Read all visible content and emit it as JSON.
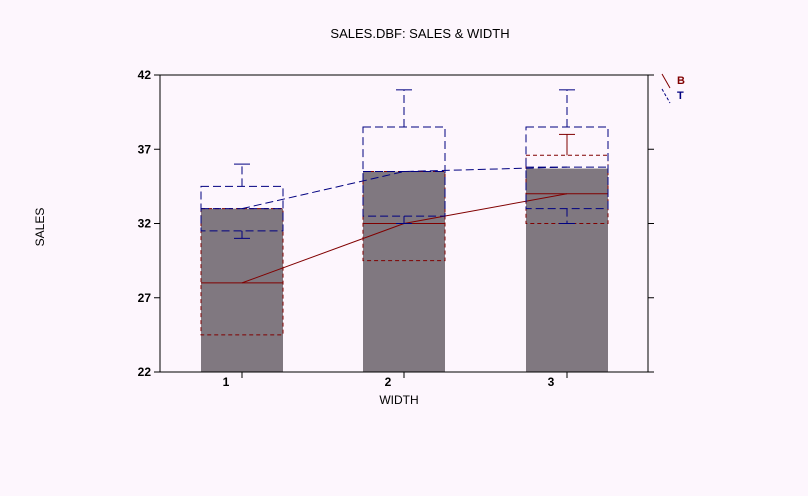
{
  "chart_data": {
    "type": "bar",
    "title": "SALES.DBF: SALES & WIDTH",
    "xlabel": "WIDTH",
    "ylabel": "SALES",
    "categories": [
      "1",
      "2",
      "3"
    ],
    "ylim": [
      22,
      42
    ],
    "yticks": [
      "22",
      "27",
      "32",
      "37",
      "42"
    ],
    "grid": false,
    "legend_position": "top-right",
    "bar_values": [
      33.0,
      35.5,
      35.7
    ],
    "colors": {
      "background": "#fdf6fd",
      "bars": "#807880",
      "B": "#800000",
      "T": "#000080",
      "axis": "#000000"
    },
    "series": [
      {
        "name": "B",
        "means": [
          28.0,
          32.0,
          34.0
        ],
        "box_low": [
          24.5,
          29.5,
          32.0
        ],
        "box_high": [
          33.0,
          35.5,
          36.6
        ],
        "whisker_high": [
          null,
          null,
          38.0
        ],
        "whisker_low": [
          null,
          null,
          null
        ]
      },
      {
        "name": "T",
        "means": [
          33.0,
          35.5,
          35.8
        ],
        "box_low": [
          31.5,
          32.5,
          33.0
        ],
        "box_high": [
          34.5,
          38.5,
          38.5
        ],
        "whisker_high": [
          36.0,
          41.0,
          41.0
        ],
        "whisker_low": [
          31.0,
          32.0,
          32.0
        ]
      }
    ]
  }
}
